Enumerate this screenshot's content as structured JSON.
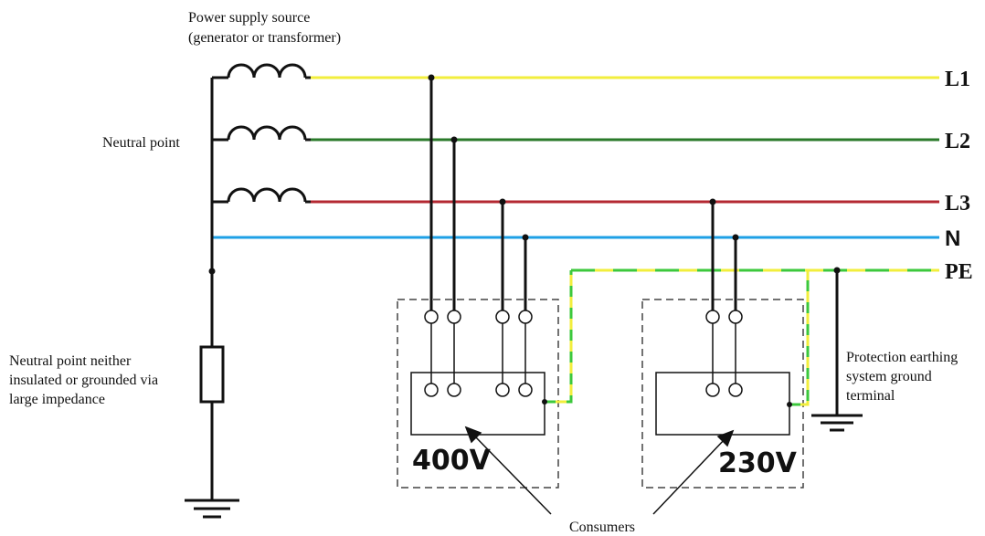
{
  "source_label": [
    "Power supply source",
    "(generator or transformer)"
  ],
  "neutral_point_label": "Neutral point",
  "neutral_note": [
    "Neutral point neither",
    "insulated or grounded via",
    "large impedance"
  ],
  "earthing_note": [
    "Protection earthing",
    "system ground",
    "terminal"
  ],
  "consumers_label": "Consumers",
  "buses": {
    "l1": "L1",
    "l2": "L2",
    "l3": "L3",
    "n": "N",
    "pe": "PE"
  },
  "consumer_1_voltage": "400V",
  "consumer_2_voltage": "230V",
  "colors": {
    "l1": "#f2ee3c",
    "l2": "#2a7a2a",
    "l3": "#b42832",
    "n": "#1ea0e6",
    "pe_yellow": "#f2ee3c",
    "pe_green": "#3cc83c",
    "wire": "#111111"
  }
}
